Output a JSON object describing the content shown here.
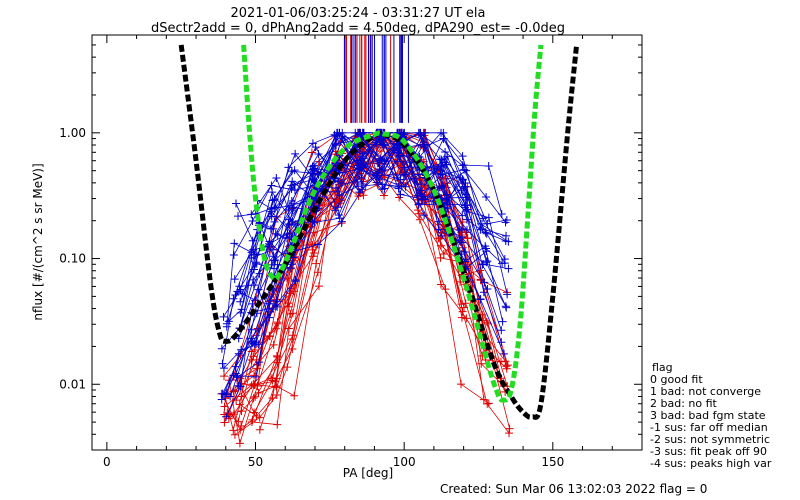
{
  "chart_data": {
    "type": "line",
    "title": "2021-01-06/03:25:24 - 03:31:27 UT ela",
    "subtitle": "dSectr2add = 0, dPhAng2add = 4.50deg, dPA290_est=  -0.0deg",
    "xlabel": "PA [deg]",
    "ylabel": "nflux [#/(cm^2 s sr MeV)]",
    "xlim": [
      -5,
      180
    ],
    "ylim": [
      0.003,
      6.0
    ],
    "yscale": "log",
    "x_ticks": [
      "0",
      "50",
      "100",
      "150"
    ],
    "y_ticks": [
      "0.01",
      "0.10",
      "1.00"
    ],
    "black_fit": {
      "color": "#000000",
      "x": [
        25,
        30,
        35,
        38,
        40,
        43,
        50,
        60,
        70,
        80,
        90,
        93,
        100,
        110,
        120,
        130,
        136,
        140,
        143,
        146,
        150,
        155,
        158
      ],
      "y": [
        5.0,
        0.6,
        0.06,
        0.025,
        0.022,
        0.024,
        0.04,
        0.09,
        0.25,
        0.6,
        0.95,
        0.97,
        0.8,
        0.35,
        0.08,
        0.015,
        0.008,
        0.006,
        0.0055,
        0.007,
        0.05,
        1.0,
        5.0
      ]
    },
    "green_fit": {
      "color": "#22dd22",
      "x": [
        46,
        48,
        50,
        53,
        56,
        58,
        62,
        70,
        80,
        90,
        93,
        100,
        110,
        120,
        128,
        131,
        133,
        136,
        139,
        142,
        144,
        146
      ],
      "y": [
        5.0,
        1.0,
        0.3,
        0.1,
        0.07,
        0.075,
        0.12,
        0.35,
        0.75,
        0.97,
        0.98,
        0.85,
        0.35,
        0.07,
        0.015,
        0.009,
        0.0075,
        0.009,
        0.03,
        0.3,
        1.5,
        5.0
      ]
    },
    "legend": {
      "title": "flag",
      "entries": [
        " 0  good fit",
        " 1  bad: not converge",
        " 2  bad: no fit",
        " 3  bad: bad fgm state",
        "-1  sus: far off median",
        "-2  sus: not symmetric",
        "-3  sus: fit peak off 90",
        "-4  sus: peaks high var"
      ]
    },
    "footer": "Created: Sun Mar 06 13:02:03 2022    flag = 0"
  }
}
